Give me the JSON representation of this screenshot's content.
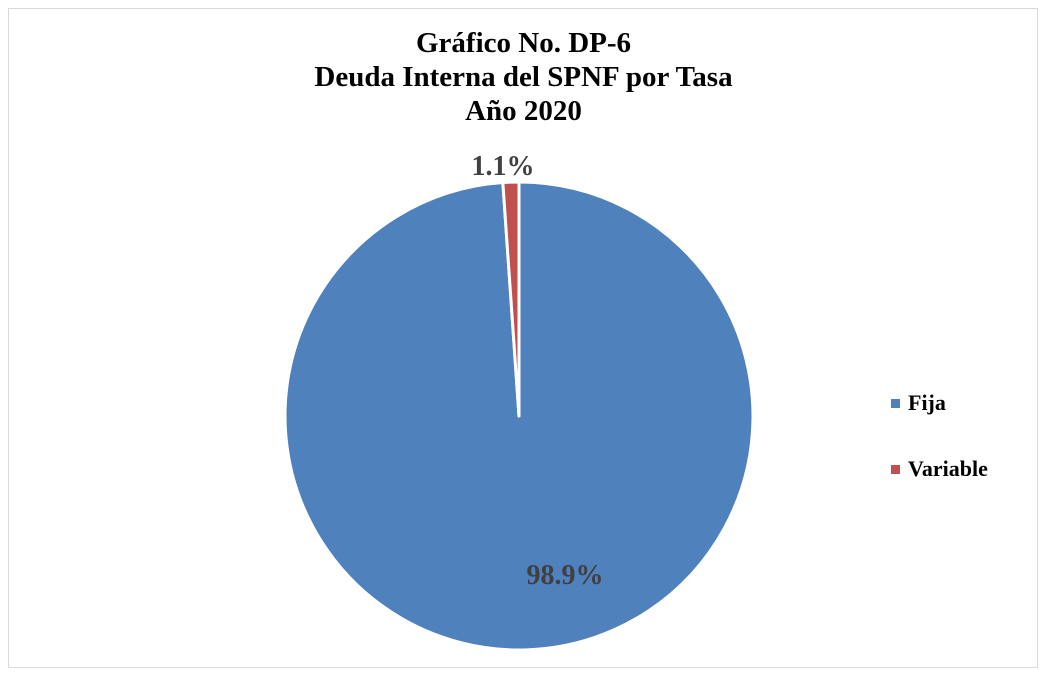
{
  "chart_data": {
    "type": "pie",
    "title_lines": [
      "Gráfico No. DP-6",
      "Deuda Interna del SPNF por Tasa",
      "Año 2020"
    ],
    "categories": [
      "Fija",
      "Variable"
    ],
    "values": [
      98.9,
      1.1
    ],
    "labels": [
      "98.9%",
      "1.1%"
    ],
    "colors": [
      "#4f81bd",
      "#c0504d"
    ],
    "legend_placement": "right"
  }
}
